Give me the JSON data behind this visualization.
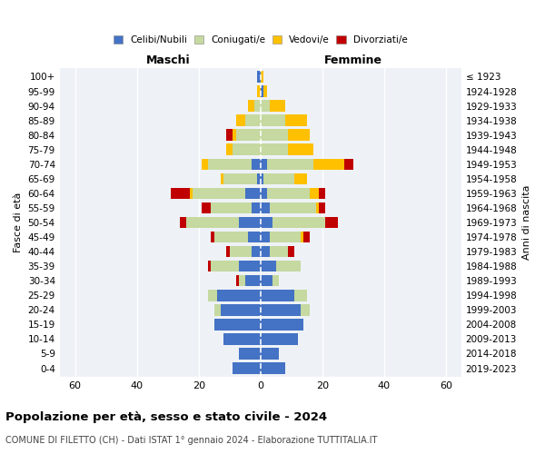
{
  "age_groups": [
    "0-4",
    "5-9",
    "10-14",
    "15-19",
    "20-24",
    "25-29",
    "30-34",
    "35-39",
    "40-44",
    "45-49",
    "50-54",
    "55-59",
    "60-64",
    "65-69",
    "70-74",
    "75-79",
    "80-84",
    "85-89",
    "90-94",
    "95-99",
    "100+"
  ],
  "birth_years": [
    "2019-2023",
    "2014-2018",
    "2009-2013",
    "2004-2008",
    "1999-2003",
    "1994-1998",
    "1989-1993",
    "1984-1988",
    "1979-1983",
    "1974-1978",
    "1969-1973",
    "1964-1968",
    "1959-1963",
    "1954-1958",
    "1949-1953",
    "1944-1948",
    "1939-1943",
    "1934-1938",
    "1929-1933",
    "1924-1928",
    "≤ 1923"
  ],
  "colors": {
    "celibi": "#4472c4",
    "coniugati": "#c5d9a0",
    "vedovi": "#ffc000",
    "divorziati": "#c00000"
  },
  "males": {
    "celibi": [
      9,
      7,
      12,
      15,
      13,
      14,
      5,
      7,
      3,
      4,
      7,
      3,
      5,
      1,
      3,
      0,
      0,
      0,
      0,
      0,
      1
    ],
    "coniugati": [
      0,
      0,
      0,
      0,
      2,
      3,
      2,
      9,
      7,
      11,
      17,
      13,
      17,
      11,
      14,
      9,
      8,
      5,
      2,
      0,
      0
    ],
    "vedovi": [
      0,
      0,
      0,
      0,
      0,
      0,
      0,
      0,
      0,
      0,
      0,
      0,
      1,
      1,
      2,
      2,
      1,
      3,
      2,
      1,
      0
    ],
    "divorziati": [
      0,
      0,
      0,
      0,
      0,
      0,
      1,
      1,
      1,
      1,
      2,
      3,
      6,
      0,
      0,
      0,
      2,
      0,
      0,
      0,
      0
    ]
  },
  "females": {
    "nubili": [
      8,
      6,
      12,
      14,
      13,
      11,
      4,
      5,
      3,
      3,
      4,
      3,
      2,
      1,
      2,
      0,
      0,
      0,
      0,
      1,
      0
    ],
    "coniugate": [
      0,
      0,
      0,
      0,
      3,
      4,
      2,
      8,
      6,
      10,
      17,
      15,
      14,
      10,
      15,
      9,
      9,
      8,
      3,
      0,
      0
    ],
    "vedove": [
      0,
      0,
      0,
      0,
      0,
      0,
      0,
      0,
      0,
      1,
      0,
      1,
      3,
      4,
      10,
      8,
      7,
      7,
      5,
      1,
      1
    ],
    "divorziate": [
      0,
      0,
      0,
      0,
      0,
      0,
      0,
      0,
      2,
      2,
      4,
      2,
      2,
      0,
      3,
      0,
      0,
      0,
      0,
      0,
      0
    ]
  },
  "xlim": [
    -65,
    65
  ],
  "xticks": [
    -60,
    -40,
    -20,
    0,
    20,
    40,
    60
  ],
  "xtick_labels": [
    "60",
    "40",
    "20",
    "0",
    "20",
    "40",
    "60"
  ],
  "title": "Popolazione per età, sesso e stato civile - 2024",
  "subtitle": "COMUNE DI FILETTO (CH) - Dati ISTAT 1° gennaio 2024 - Elaborazione TUTTITALIA.IT",
  "ylabel_left": "Fasce di età",
  "ylabel_right": "Anni di nascita",
  "label_maschi": "Maschi",
  "label_femmine": "Femmine",
  "legend_labels": [
    "Celibi/Nubili",
    "Coniugati/e",
    "Vedovi/e",
    "Divorziati/e"
  ],
  "background_color": "#eef2f7"
}
